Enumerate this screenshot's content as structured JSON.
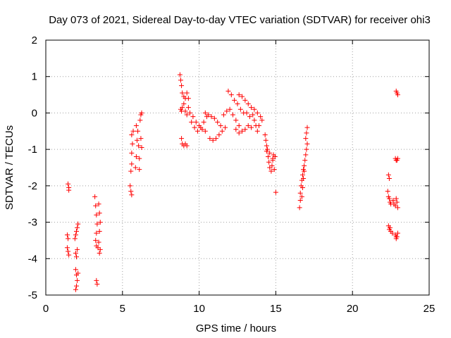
{
  "chart_data": {
    "type": "scatter",
    "title": "Day 073 of 2021, Sidereal Day-to-day VTEC variation (SDTVAR) for receiver ohi3",
    "xlabel": "GPS time / hours",
    "ylabel": "SDTVAR / TECUs",
    "xlim": [
      0,
      25
    ],
    "ylim": [
      -5,
      2
    ],
    "xticks": [
      0,
      5,
      10,
      15,
      20,
      25
    ],
    "yticks": [
      -5,
      -4,
      -3,
      -2,
      -1,
      0,
      1,
      2
    ],
    "grid": true,
    "marker": "+",
    "series_color": "#ff0000",
    "series": [
      {
        "name": "SDTVAR",
        "points": [
          [
            1.45,
            -1.95
          ],
          [
            1.5,
            -2.05
          ],
          [
            1.5,
            -2.12
          ],
          [
            1.4,
            -3.35
          ],
          [
            1.45,
            -3.45
          ],
          [
            1.4,
            -3.7
          ],
          [
            1.45,
            -3.8
          ],
          [
            1.5,
            -3.9
          ],
          [
            1.9,
            -3.45
          ],
          [
            1.95,
            -3.35
          ],
          [
            2.0,
            -3.25
          ],
          [
            2.05,
            -3.15
          ],
          [
            2.1,
            -3.05
          ],
          [
            1.95,
            -3.85
          ],
          [
            2.05,
            -3.75
          ],
          [
            2.0,
            -3.95
          ],
          [
            1.95,
            -4.3
          ],
          [
            2.0,
            -4.45
          ],
          [
            2.05,
            -4.6
          ],
          [
            2.0,
            -4.75
          ],
          [
            1.95,
            -4.85
          ],
          [
            2.1,
            -4.4
          ],
          [
            3.2,
            -2.3
          ],
          [
            3.25,
            -2.55
          ],
          [
            3.3,
            -2.8
          ],
          [
            3.35,
            -3.05
          ],
          [
            3.3,
            -3.3
          ],
          [
            3.25,
            -3.5
          ],
          [
            3.3,
            -3.65
          ],
          [
            3.45,
            -2.5
          ],
          [
            3.5,
            -2.75
          ],
          [
            3.55,
            -3.0
          ],
          [
            3.5,
            -3.25
          ],
          [
            3.45,
            -3.55
          ],
          [
            3.55,
            -3.75
          ],
          [
            3.5,
            -3.85
          ],
          [
            3.4,
            -3.7
          ],
          [
            3.3,
            -4.6
          ],
          [
            3.35,
            -4.7
          ],
          [
            5.5,
            -2.0
          ],
          [
            5.55,
            -2.15
          ],
          [
            5.6,
            -2.25
          ],
          [
            5.55,
            -1.6
          ],
          [
            5.6,
            -1.4
          ],
          [
            5.6,
            -1.1
          ],
          [
            5.65,
            -0.85
          ],
          [
            5.6,
            -0.6
          ],
          [
            5.7,
            -0.5
          ],
          [
            5.9,
            -0.35
          ],
          [
            5.95,
            -0.75
          ],
          [
            5.9,
            -1.2
          ],
          [
            5.85,
            -1.5
          ],
          [
            6.0,
            -0.5
          ],
          [
            6.05,
            -0.9
          ],
          [
            6.1,
            -1.25
          ],
          [
            6.1,
            -1.55
          ],
          [
            6.15,
            -0.2
          ],
          [
            6.2,
            -0.05
          ],
          [
            6.25,
            0.0
          ],
          [
            6.2,
            -0.7
          ],
          [
            6.25,
            -0.95
          ],
          [
            8.75,
            1.05
          ],
          [
            8.8,
            0.9
          ],
          [
            8.85,
            0.75
          ],
          [
            8.9,
            0.55
          ],
          [
            9.0,
            0.45
          ],
          [
            9.1,
            0.4
          ],
          [
            9.2,
            0.55
          ],
          [
            9.3,
            0.4
          ],
          [
            8.8,
            0.1
          ],
          [
            8.85,
            0.05
          ],
          [
            8.9,
            0.15
          ],
          [
            9.0,
            0.25
          ],
          [
            9.1,
            0.05
          ],
          [
            9.2,
            -0.05
          ],
          [
            9.3,
            0.15
          ],
          [
            8.85,
            -0.7
          ],
          [
            8.9,
            -0.85
          ],
          [
            9.0,
            -0.9
          ],
          [
            9.1,
            -0.85
          ],
          [
            9.2,
            -0.9
          ],
          [
            9.4,
            0.0
          ],
          [
            9.6,
            -0.1
          ],
          [
            9.8,
            -0.25
          ],
          [
            10.0,
            -0.35
          ],
          [
            10.2,
            -0.45
          ],
          [
            10.4,
            -0.5
          ],
          [
            9.5,
            -0.25
          ],
          [
            9.7,
            -0.4
          ],
          [
            9.9,
            -0.5
          ],
          [
            10.1,
            -0.4
          ],
          [
            10.3,
            -0.25
          ],
          [
            10.5,
            -0.1
          ],
          [
            10.4,
            0.0
          ],
          [
            10.6,
            -0.05
          ],
          [
            10.8,
            -0.1
          ],
          [
            11.0,
            -0.15
          ],
          [
            11.2,
            -0.25
          ],
          [
            11.4,
            -0.35
          ],
          [
            10.7,
            -0.7
          ],
          [
            10.9,
            -0.75
          ],
          [
            11.1,
            -0.7
          ],
          [
            11.3,
            -0.6
          ],
          [
            11.5,
            -0.5
          ],
          [
            11.7,
            -0.4
          ],
          [
            11.6,
            -0.05
          ],
          [
            11.8,
            0.05
          ],
          [
            12.0,
            0.1
          ],
          [
            11.9,
            0.6
          ],
          [
            12.1,
            0.5
          ],
          [
            12.3,
            0.35
          ],
          [
            12.5,
            0.25
          ],
          [
            12.7,
            0.1
          ],
          [
            12.9,
            0.0
          ],
          [
            12.2,
            -0.05
          ],
          [
            12.4,
            -0.2
          ],
          [
            12.6,
            -0.35
          ],
          [
            12.8,
            -0.5
          ],
          [
            12.4,
            -0.45
          ],
          [
            12.6,
            -0.55
          ],
          [
            13.0,
            -0.45
          ],
          [
            13.2,
            -0.35
          ],
          [
            13.4,
            -0.4
          ],
          [
            12.6,
            0.5
          ],
          [
            12.8,
            0.45
          ],
          [
            13.0,
            0.35
          ],
          [
            13.2,
            0.25
          ],
          [
            13.4,
            0.15
          ],
          [
            13.1,
            0.0
          ],
          [
            13.3,
            -0.1
          ],
          [
            13.5,
            -0.05
          ],
          [
            13.6,
            -0.2
          ],
          [
            13.7,
            -0.35
          ],
          [
            13.8,
            -0.5
          ],
          [
            13.9,
            -0.35
          ],
          [
            13.6,
            0.1
          ],
          [
            13.8,
            0.0
          ],
          [
            14.0,
            -0.1
          ],
          [
            14.1,
            -0.2
          ],
          [
            14.3,
            -0.6
          ],
          [
            14.35,
            -0.75
          ],
          [
            14.4,
            -0.9
          ],
          [
            14.45,
            -1.0
          ],
          [
            14.5,
            -1.2
          ],
          [
            14.55,
            -1.35
          ],
          [
            14.6,
            -1.5
          ],
          [
            14.7,
            -1.6
          ],
          [
            14.75,
            -1.45
          ],
          [
            14.8,
            -1.3
          ],
          [
            14.85,
            -1.15
          ],
          [
            14.9,
            -1.55
          ],
          [
            14.95,
            -1.2
          ],
          [
            14.4,
            -1.05
          ],
          [
            14.6,
            -1.1
          ],
          [
            14.8,
            -1.25
          ],
          [
            15.0,
            -2.18
          ],
          [
            16.55,
            -2.6
          ],
          [
            16.6,
            -2.4
          ],
          [
            16.6,
            -2.2
          ],
          [
            16.65,
            -2.0
          ],
          [
            16.7,
            -1.85
          ],
          [
            16.75,
            -1.7
          ],
          [
            16.8,
            -1.55
          ],
          [
            16.85,
            -1.45
          ],
          [
            16.9,
            -1.3
          ],
          [
            16.95,
            -1.15
          ],
          [
            16.7,
            -2.3
          ],
          [
            16.75,
            -2.05
          ],
          [
            16.8,
            -1.8
          ],
          [
            16.85,
            -1.6
          ],
          [
            17.0,
            -1.0
          ],
          [
            17.05,
            -0.85
          ],
          [
            16.95,
            -0.7
          ],
          [
            17.0,
            -0.55
          ],
          [
            17.05,
            -0.4
          ],
          [
            22.35,
            -1.7
          ],
          [
            22.4,
            -1.8
          ],
          [
            22.3,
            -2.15
          ],
          [
            22.35,
            -2.3
          ],
          [
            22.45,
            -2.45
          ],
          [
            22.5,
            -2.5
          ],
          [
            22.4,
            -2.35
          ],
          [
            22.35,
            -3.1
          ],
          [
            22.4,
            -3.2
          ],
          [
            22.5,
            -3.25
          ],
          [
            22.6,
            -3.3
          ],
          [
            22.45,
            -3.15
          ],
          [
            22.65,
            -2.4
          ],
          [
            22.7,
            -2.5
          ],
          [
            22.8,
            -2.55
          ],
          [
            22.9,
            -2.45
          ],
          [
            22.95,
            -2.6
          ],
          [
            22.85,
            -2.35
          ],
          [
            22.8,
            -1.25
          ],
          [
            22.85,
            -1.3
          ],
          [
            22.9,
            -1.3
          ],
          [
            22.95,
            -1.25
          ],
          [
            22.8,
            -3.35
          ],
          [
            22.85,
            -3.4
          ],
          [
            22.9,
            -3.4
          ],
          [
            22.95,
            -3.3
          ],
          [
            22.85,
            -3.45
          ],
          [
            22.85,
            0.6
          ],
          [
            22.9,
            0.55
          ],
          [
            22.95,
            0.5
          ]
        ]
      }
    ]
  }
}
